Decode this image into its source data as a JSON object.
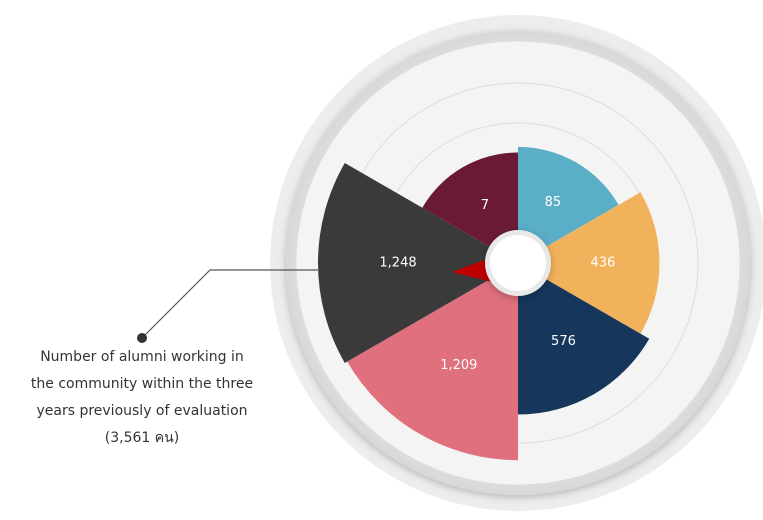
{
  "chart_data": {
    "type": "polar",
    "values": [
      85,
      436,
      576,
      1209,
      1248,
      7
    ],
    "value_labels": [
      "85",
      "436",
      "576",
      "1,209",
      "1,248",
      "7"
    ],
    "colors": [
      "#5aaec6",
      "#f2b25c",
      "#16365c",
      "#e0707e",
      "#3a3a3a",
      "#6b1a36"
    ],
    "annotation": [
      "Number of alumni working in",
      "the community within the three",
      "years previously of evaluation",
      "(3,561 คน)"
    ]
  }
}
